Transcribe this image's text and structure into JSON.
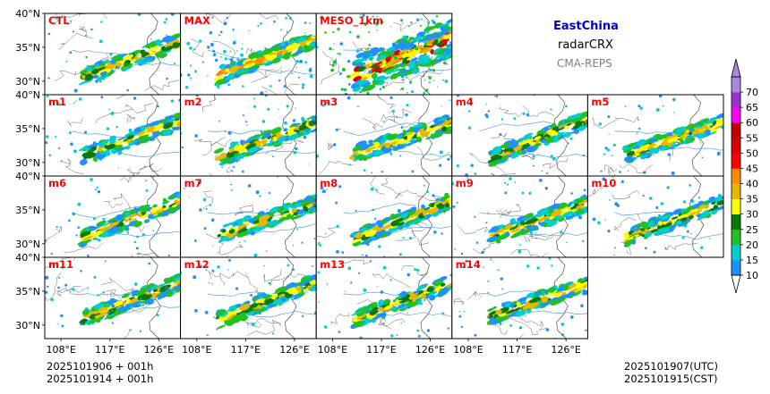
{
  "header": {
    "region": "EastChina",
    "product": "radarCRX",
    "system": "CMA-REPS"
  },
  "footer": {
    "init_utc": "2025101906  +  001h",
    "init_cst": "2025101914  +  001h",
    "valid_utc": "2025101907(UTC)",
    "valid_cst": "2025101915(CST)"
  },
  "colors": {
    "region_title": "#0000cc",
    "system_label": "#808080",
    "panel_label": "#ff0000"
  },
  "chart_data": {
    "type": "heatmap",
    "panels": [
      "CTL",
      "MAX",
      "MESO_1km",
      "m1",
      "m2",
      "m3",
      "m4",
      "m5",
      "m6",
      "m7",
      "m8",
      "m9",
      "m10",
      "m11",
      "m12",
      "m13",
      "m14"
    ],
    "lat_ticks": [
      "40°N",
      "35°N",
      "30°N"
    ],
    "lat_tick_values": [
      40,
      35,
      30
    ],
    "lon_ticks": [
      "108°E",
      "117°E",
      "126°E"
    ],
    "lon_tick_values": [
      108,
      117,
      126
    ],
    "lon_range": [
      105,
      130
    ],
    "lat_range": [
      28,
      40
    ],
    "colorbar": {
      "levels": [
        10,
        15,
        20,
        25,
        30,
        35,
        40,
        45,
        50,
        55,
        60,
        65,
        70
      ],
      "labels": [
        "10",
        "15",
        "20",
        "25",
        "30",
        "35",
        "40",
        "45",
        "50",
        "55",
        "60",
        "65",
        "70"
      ],
      "colors": [
        "#1E90FF",
        "#00CED1",
        "#22C022",
        "#0A7A0A",
        "#FFFF00",
        "#E6B800",
        "#FF8C00",
        "#FF0000",
        "#D80000",
        "#C00000",
        "#FF00FF",
        "#9932CC",
        "#AA88DD"
      ],
      "extend": "both"
    }
  }
}
